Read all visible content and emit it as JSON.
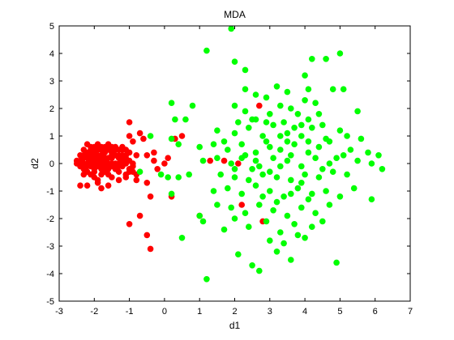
{
  "chart_data": {
    "type": "scatter",
    "title": "MDA",
    "xlabel": "d1",
    "ylabel": "d2",
    "xlim": [
      -3,
      7
    ],
    "ylim": [
      -5,
      5
    ],
    "xticks": [
      "-3",
      "-2",
      "-1",
      "0",
      "1",
      "2",
      "3",
      "4",
      "5",
      "6",
      "7"
    ],
    "yticks": [
      "-5",
      "-4",
      "-3",
      "-2",
      "-1",
      "0",
      "1",
      "2",
      "3",
      "4",
      "5"
    ],
    "grid": false,
    "legend": "none",
    "series": [
      {
        "color": "#ff0000",
        "points": [
          [
            -2.5,
            0.0
          ],
          [
            -2.4,
            0.1
          ],
          [
            -2.4,
            -0.1
          ],
          [
            -2.3,
            0.2
          ],
          [
            -2.3,
            0.3
          ],
          [
            -2.3,
            -0.2
          ],
          [
            -2.2,
            0.4
          ],
          [
            -2.2,
            0.0
          ],
          [
            -2.2,
            -0.3
          ],
          [
            -2.1,
            0.5
          ],
          [
            -2.1,
            0.1
          ],
          [
            -2.1,
            -0.4
          ],
          [
            -2.0,
            0.6
          ],
          [
            -2.0,
            0.2
          ],
          [
            -2.0,
            -0.2
          ],
          [
            -2.0,
            -0.5
          ],
          [
            -1.9,
            0.7
          ],
          [
            -1.9,
            0.3
          ],
          [
            -1.9,
            -0.1
          ],
          [
            -1.9,
            -0.6
          ],
          [
            -1.8,
            0.6
          ],
          [
            -1.8,
            0.0
          ],
          [
            -1.8,
            -0.4
          ],
          [
            -1.7,
            0.5
          ],
          [
            -1.7,
            0.1
          ],
          [
            -1.7,
            -0.3
          ],
          [
            -1.6,
            0.7
          ],
          [
            -1.6,
            0.2
          ],
          [
            -1.6,
            -0.2
          ],
          [
            -1.5,
            0.4
          ],
          [
            -1.5,
            -0.1
          ],
          [
            -1.5,
            -0.5
          ],
          [
            -1.4,
            0.6
          ],
          [
            -1.4,
            0.0
          ],
          [
            -1.3,
            0.3
          ],
          [
            -1.3,
            -0.3
          ],
          [
            -1.2,
            0.5
          ],
          [
            -1.2,
            0.1
          ],
          [
            -1.1,
            0.2
          ],
          [
            -1.1,
            -0.4
          ],
          [
            -1.0,
            0.4
          ],
          [
            -1.0,
            -0.2
          ],
          [
            -0.9,
            0.8
          ],
          [
            -0.9,
            0.0
          ],
          [
            -0.8,
            0.3
          ],
          [
            -0.8,
            -0.6
          ],
          [
            -2.3,
            0.5
          ],
          [
            -2.1,
            0.3
          ],
          [
            -1.9,
            0.1
          ],
          [
            -1.7,
            0.6
          ],
          [
            -1.5,
            0.2
          ],
          [
            -1.3,
            0.0
          ],
          [
            -1.1,
            0.5
          ],
          [
            -2.2,
            0.7
          ],
          [
            -2.0,
            0.4
          ],
          [
            -1.8,
            0.3
          ],
          [
            -1.6,
            0.5
          ],
          [
            -1.4,
            0.3
          ],
          [
            -1.2,
            -0.1
          ],
          [
            -2.4,
            0.3
          ],
          [
            -2.2,
            0.2
          ],
          [
            -2.0,
            0.0
          ],
          [
            -1.8,
            -0.2
          ],
          [
            -1.6,
            0.0
          ],
          [
            -1.4,
            -0.2
          ],
          [
            -1.2,
            0.3
          ],
          [
            -1.0,
            0.1
          ],
          [
            -2.1,
            -0.1
          ],
          [
            -1.9,
            0.5
          ],
          [
            -1.7,
            -0.1
          ],
          [
            -1.5,
            0.6
          ],
          [
            -1.3,
            0.5
          ],
          [
            -1.1,
            0.0
          ],
          [
            -2.3,
            0.0
          ],
          [
            -2.0,
            -0.3
          ],
          [
            -1.8,
            0.5
          ],
          [
            -1.6,
            -0.4
          ],
          [
            -1.4,
            0.5
          ],
          [
            -1.2,
            0.6
          ],
          [
            -1.0,
            -0.3
          ],
          [
            -2.4,
            -0.8
          ],
          [
            -2.2,
            -0.8
          ],
          [
            -1.8,
            -0.9
          ],
          [
            -1.6,
            -0.8
          ],
          [
            -1.3,
            -0.6
          ],
          [
            -1.1,
            -0.5
          ],
          [
            -1.0,
            1.5
          ],
          [
            -1.0,
            1.0
          ],
          [
            -0.9,
            -0.3
          ],
          [
            -0.8,
            -0.4
          ],
          [
            -0.7,
            1.1
          ],
          [
            -0.6,
            0.9
          ],
          [
            -0.5,
            0.3
          ],
          [
            -0.5,
            -0.7
          ],
          [
            -0.4,
            -1.2
          ],
          [
            -0.3,
            0.1
          ],
          [
            -0.2,
            -0.2
          ],
          [
            0.0,
            0.0
          ],
          [
            0.1,
            0.2
          ],
          [
            0.2,
            -1.2
          ],
          [
            0.3,
            0.9
          ],
          [
            0.5,
            1.0
          ],
          [
            1.0,
            -1.9
          ],
          [
            -1.0,
            -2.2
          ],
          [
            -0.7,
            -1.9
          ],
          [
            -0.5,
            -2.6
          ],
          [
            -0.4,
            -3.1
          ],
          [
            1.3,
            0.1
          ],
          [
            1.7,
            0.1
          ],
          [
            2.1,
            0.0
          ],
          [
            2.2,
            -1.5
          ],
          [
            2.7,
            2.1
          ],
          [
            2.8,
            -2.1
          ],
          [
            -0.3,
            0.4
          ],
          [
            -0.9,
            -0.1
          ],
          [
            -2.5,
            0.1
          ],
          [
            -2.3,
            -0.4
          ],
          [
            -1.9,
            -0.7
          ],
          [
            -1.7,
            0.2
          ],
          [
            -1.5,
            0.0
          ],
          [
            -1.3,
            0.2
          ],
          [
            -2.1,
            0.6
          ],
          [
            -1.9,
            0.2
          ],
          [
            -1.7,
            0.4
          ],
          [
            -1.5,
            0.3
          ],
          [
            -1.3,
            -0.1
          ],
          [
            -1.1,
            0.3
          ],
          [
            -2.2,
            -0.1
          ],
          [
            -2.0,
            0.3
          ],
          [
            -1.8,
            0.1
          ]
        ]
      },
      {
        "color": "#00ff00",
        "points": [
          [
            1.9,
            4.9
          ],
          [
            1.2,
            4.1
          ],
          [
            2.0,
            3.7
          ],
          [
            2.3,
            3.4
          ],
          [
            4.2,
            3.8
          ],
          [
            4.6,
            3.8
          ],
          [
            5.0,
            4.0
          ],
          [
            4.0,
            3.2
          ],
          [
            3.2,
            2.8
          ],
          [
            3.5,
            2.6
          ],
          [
            4.1,
            2.7
          ],
          [
            4.8,
            2.7
          ],
          [
            5.1,
            2.7
          ],
          [
            2.3,
            2.7
          ],
          [
            2.6,
            2.5
          ],
          [
            2.9,
            2.4
          ],
          [
            3.3,
            2.1
          ],
          [
            3.6,
            2.0
          ],
          [
            4.0,
            2.3
          ],
          [
            4.3,
            2.2
          ],
          [
            0.2,
            2.2
          ],
          [
            0.8,
            2.1
          ],
          [
            2.0,
            2.1
          ],
          [
            2.3,
            1.9
          ],
          [
            2.6,
            1.6
          ],
          [
            3.0,
            1.8
          ],
          [
            3.4,
            1.5
          ],
          [
            3.7,
            1.3
          ],
          [
            4.1,
            1.6
          ],
          [
            4.5,
            1.4
          ],
          [
            5.5,
            1.9
          ],
          [
            5.0,
            1.2
          ],
          [
            0.3,
            1.6
          ],
          [
            0.6,
            1.6
          ],
          [
            1.5,
            1.2
          ],
          [
            2.0,
            1.1
          ],
          [
            2.4,
            1.3
          ],
          [
            2.8,
            1.0
          ],
          [
            3.1,
            1.4
          ],
          [
            3.5,
            1.1
          ],
          [
            3.9,
            1.0
          ],
          [
            4.2,
            1.3
          ],
          [
            4.6,
            0.9
          ],
          [
            5.2,
            1.0
          ],
          [
            5.6,
            0.9
          ],
          [
            -0.4,
            1.0
          ],
          [
            0.2,
            0.9
          ],
          [
            0.4,
            0.7
          ],
          [
            1.0,
            0.6
          ],
          [
            1.4,
            0.7
          ],
          [
            1.8,
            0.5
          ],
          [
            2.2,
            0.7
          ],
          [
            2.6,
            0.4
          ],
          [
            3.0,
            0.6
          ],
          [
            3.3,
            0.5
          ],
          [
            3.7,
            0.7
          ],
          [
            4.1,
            0.4
          ],
          [
            4.4,
            0.6
          ],
          [
            4.7,
            0.8
          ],
          [
            5.3,
            0.5
          ],
          [
            5.8,
            0.4
          ],
          [
            6.1,
            0.3
          ],
          [
            1.1,
            0.1
          ],
          [
            1.5,
            0.2
          ],
          [
            1.9,
            0.0
          ],
          [
            2.3,
            0.3
          ],
          [
            2.7,
            -0.1
          ],
          [
            3.1,
            0.2
          ],
          [
            3.5,
            0.1
          ],
          [
            3.9,
            -0.1
          ],
          [
            4.3,
            0.2
          ],
          [
            4.7,
            0.0
          ],
          [
            5.1,
            0.3
          ],
          [
            5.5,
            0.1
          ],
          [
            5.9,
            0.0
          ],
          [
            6.2,
            -0.2
          ],
          [
            -0.7,
            -0.3
          ],
          [
            -0.1,
            -0.4
          ],
          [
            0.1,
            -0.5
          ],
          [
            0.4,
            -0.5
          ],
          [
            0.7,
            -0.4
          ],
          [
            1.6,
            -0.4
          ],
          [
            2.0,
            -0.5
          ],
          [
            2.4,
            -0.6
          ],
          [
            2.8,
            -0.4
          ],
          [
            3.2,
            -0.5
          ],
          [
            3.6,
            -0.6
          ],
          [
            4.0,
            -0.4
          ],
          [
            4.4,
            -0.5
          ],
          [
            4.8,
            -0.3
          ],
          [
            5.2,
            -0.4
          ],
          [
            0.2,
            -1.1
          ],
          [
            1.4,
            -1.0
          ],
          [
            1.8,
            -0.9
          ],
          [
            2.2,
            -1.1
          ],
          [
            2.6,
            -0.8
          ],
          [
            3.0,
            -1.0
          ],
          [
            3.4,
            -1.2
          ],
          [
            3.8,
            -0.9
          ],
          [
            4.2,
            -1.1
          ],
          [
            4.6,
            -1.0
          ],
          [
            5.0,
            -1.2
          ],
          [
            5.4,
            -0.9
          ],
          [
            5.9,
            -1.3
          ],
          [
            1.0,
            -1.9
          ],
          [
            1.5,
            -1.5
          ],
          [
            1.9,
            -1.6
          ],
          [
            2.3,
            -1.8
          ],
          [
            2.7,
            -1.5
          ],
          [
            3.1,
            -1.7
          ],
          [
            3.5,
            -1.9
          ],
          [
            3.9,
            -1.6
          ],
          [
            4.3,
            -1.8
          ],
          [
            4.7,
            -1.5
          ],
          [
            1.1,
            -2.1
          ],
          [
            2.0,
            -2.0
          ],
          [
            2.4,
            -2.3
          ],
          [
            2.9,
            -2.1
          ],
          [
            3.3,
            -2.5
          ],
          [
            3.7,
            -2.2
          ],
          [
            4.2,
            -2.3
          ],
          [
            4.5,
            -2.1
          ],
          [
            0.5,
            -2.7
          ],
          [
            3.0,
            -2.8
          ],
          [
            3.4,
            -2.9
          ],
          [
            3.8,
            -2.6
          ],
          [
            3.2,
            -3.2
          ],
          [
            2.5,
            -3.7
          ],
          [
            2.7,
            -3.9
          ],
          [
            4.9,
            -3.6
          ],
          [
            1.2,
            -4.2
          ],
          [
            2.1,
            -3.3
          ],
          [
            1.7,
            -2.4
          ],
          [
            3.6,
            -3.5
          ],
          [
            4.0,
            -2.7
          ],
          [
            2.5,
            1.6
          ],
          [
            3.3,
            1.0
          ],
          [
            3.8,
            1.8
          ],
          [
            4.4,
            1.8
          ],
          [
            2.1,
            1.5
          ],
          [
            2.9,
            0.8
          ],
          [
            3.6,
            0.3
          ],
          [
            4.5,
            -0.2
          ],
          [
            2.5,
            -0.2
          ],
          [
            3.3,
            -0.1
          ],
          [
            4.1,
            0.8
          ],
          [
            2.0,
            -0.2
          ],
          [
            3.0,
            -0.3
          ],
          [
            3.9,
            -0.7
          ],
          [
            2.6,
            0.1
          ],
          [
            3.2,
            -1.4
          ],
          [
            4.1,
            -1.3
          ],
          [
            2.8,
            -1.2
          ],
          [
            3.6,
            -1.1
          ],
          [
            2.2,
            0.2
          ],
          [
            3.5,
            0.8
          ],
          [
            4.9,
            0.2
          ],
          [
            1.7,
            0.8
          ],
          [
            2.9,
            1.5
          ],
          [
            3.9,
            1.4
          ]
        ]
      }
    ]
  }
}
